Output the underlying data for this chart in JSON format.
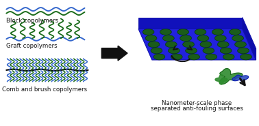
{
  "bg_color": "#ffffff",
  "blue_color": "#3366cc",
  "dark_green": "#1a6b1a",
  "black": "#111111",
  "block_label": "Block copolymers",
  "graft_label": "Graft copolymers",
  "comb_label": "Comb and brush copolymers",
  "right_label_line1": "Nanometer-scale phase",
  "right_label_line2": "separated anti-fouling surfaces",
  "surface_top": "#2222dd",
  "surface_front": "#1111bb",
  "surface_right": "#0d0daa",
  "dot_green": "#1a5c1a",
  "dot_rows": 5,
  "dot_cols": 6,
  "font_size": 6.2,
  "arrow_color": "#111111",
  "wave_blue": "#3366cc",
  "wave_green": "#1a6b1a"
}
